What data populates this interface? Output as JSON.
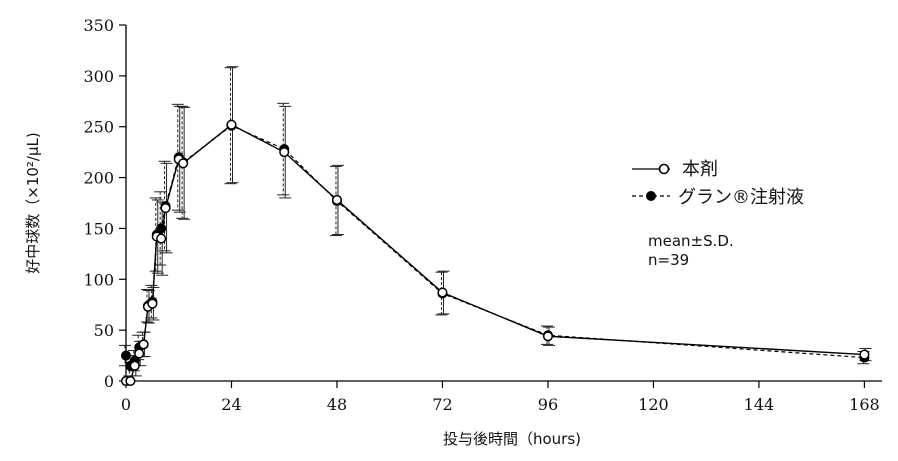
{
  "chart_data": {
    "type": "line",
    "title": "",
    "xlabel": "投与後時間（hours)",
    "ylabel": "好中球数（×10²/μL)",
    "xlim": [
      0,
      172
    ],
    "ylim": [
      0,
      350
    ],
    "xticks": [
      0,
      24,
      48,
      72,
      96,
      120,
      144,
      168
    ],
    "yticks": [
      0,
      50,
      100,
      150,
      200,
      250,
      300,
      350
    ],
    "grid": false,
    "legend_position": "right",
    "annotation_lines": [
      "mean±S.D.",
      "n=39"
    ],
    "series": [
      {
        "name": "本剤",
        "marker": "open-circle",
        "line_style": "solid",
        "color": "#000000",
        "x": [
          0,
          1,
          2,
          3,
          4,
          5,
          6,
          7,
          8,
          9,
          12,
          13,
          24,
          36,
          48,
          72,
          96,
          168
        ],
        "y": [
          0,
          0,
          15,
          27,
          36,
          73,
          76,
          142,
          140,
          170,
          218,
          214,
          252,
          225,
          178,
          87,
          44,
          26
        ],
        "err": [
          0,
          0,
          10,
          12,
          12,
          16,
          16,
          36,
          36,
          44,
          52,
          55,
          57,
          45,
          34,
          21,
          9,
          6
        ]
      },
      {
        "name": "グラン®注射液",
        "marker": "filled-circle",
        "line_style": "dashed",
        "color": "#000000",
        "x": [
          0,
          1,
          2,
          3,
          4,
          5,
          6,
          7,
          8,
          9,
          12,
          13,
          24,
          36,
          48,
          72,
          96,
          168
        ],
        "y": [
          25,
          15,
          20,
          33,
          36,
          74,
          78,
          144,
          150,
          172,
          220,
          215,
          251,
          228,
          177,
          86,
          45,
          23
        ],
        "err": [
          10,
          10,
          10,
          12,
          12,
          16,
          16,
          36,
          36,
          44,
          52,
          55,
          57,
          45,
          34,
          21,
          9,
          6
        ]
      }
    ]
  }
}
